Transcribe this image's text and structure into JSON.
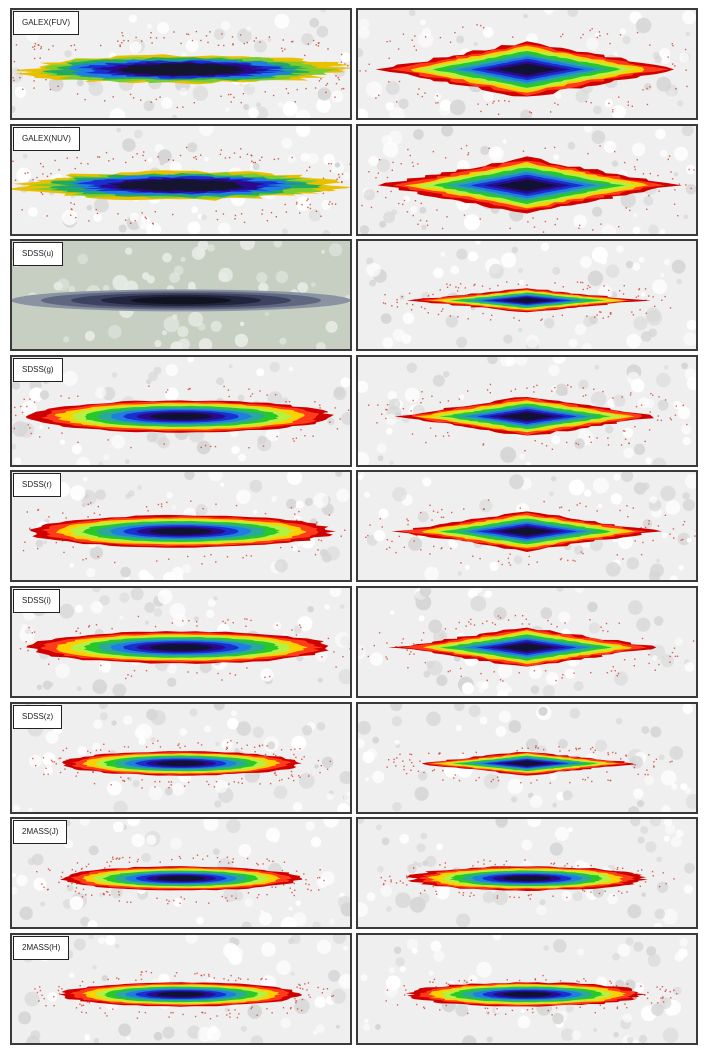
{
  "figure": {
    "rows": [
      {
        "band": "GALEX(FUV)",
        "left_bg": "#f0f0f0",
        "left_style": "patchy-dark",
        "right_style": "diamond"
      },
      {
        "band": "GALEX(NUV)",
        "left_bg": "#f0f0f0",
        "left_style": "patchy-dark",
        "right_style": "diamond"
      },
      {
        "band": "SDSS(u)",
        "left_bg": "#c6cfc2",
        "left_style": "dark-mono",
        "right_style": "diamond"
      },
      {
        "band": "SDSS(g)",
        "left_bg": "#efefef",
        "left_style": "disk",
        "right_style": "diamond"
      },
      {
        "band": "SDSS(r)",
        "left_bg": "#efefef",
        "left_style": "disk",
        "right_style": "diamond"
      },
      {
        "band": "SDSS(i)",
        "left_bg": "#efefef",
        "left_style": "disk",
        "right_style": "diamond"
      },
      {
        "band": "SDSS(z)",
        "left_bg": "#efefef",
        "left_style": "disk-small",
        "right_style": "diamond-small"
      },
      {
        "band": "2MASS(J)",
        "left_bg": "#efefef",
        "left_style": "disk-small",
        "right_style": "ellipse"
      },
      {
        "band": "2MASS(H)",
        "left_bg": "#efefef",
        "left_style": "disk-small",
        "right_style": "ellipse"
      }
    ],
    "colormap": [
      "#d00000",
      "#ff3b1a",
      "#ffd000",
      "#b6f040",
      "#28c828",
      "#2aa89a",
      "#1e7fe0",
      "#1a2fd0",
      "#2a0a8a",
      "#111133"
    ]
  }
}
